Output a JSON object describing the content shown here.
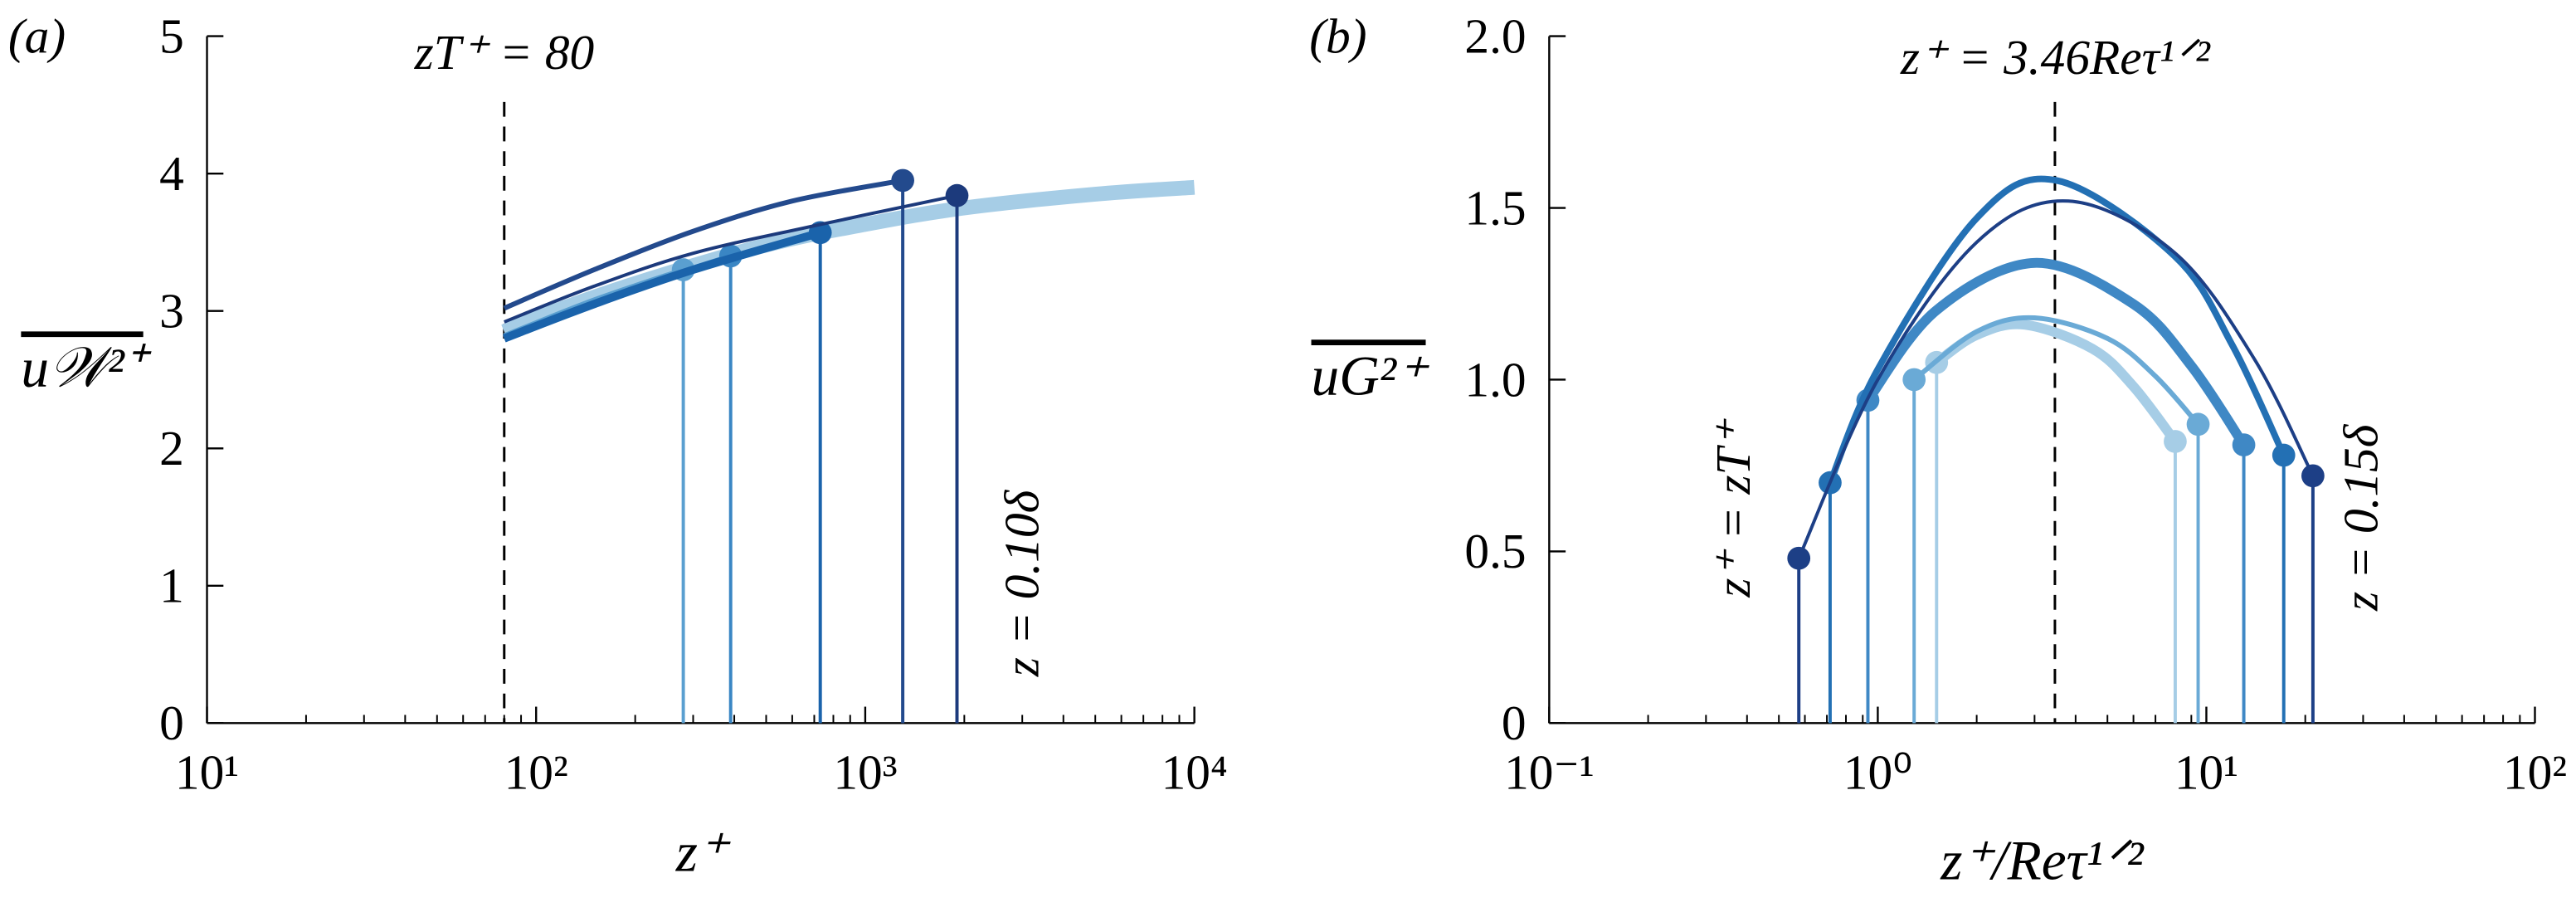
{
  "chart_data": [
    {
      "type": "line",
      "panel_label": "(a)",
      "xlabel": "z⁺",
      "ylabel": "u𝒲²⁺",
      "xscale": "log",
      "xlim": [
        10,
        10000
      ],
      "xticks": [
        {
          "value": 10,
          "label": "10¹"
        },
        {
          "value": 100,
          "label": "10²"
        },
        {
          "value": 1000,
          "label": "10³"
        },
        {
          "value": 10000,
          "label": "10⁴"
        }
      ],
      "ylim": [
        0,
        5
      ],
      "yticks": [
        0,
        1,
        2,
        3,
        4,
        5
      ],
      "vline": 80,
      "vline_label": "zT⁺ = 80",
      "annotations": [
        "z = 0.10δ"
      ],
      "markers": "last",
      "stems": true,
      "series": [
        {
          "color": "#a6cde6",
          "x": [
            80,
            100,
            200,
            500,
            1000,
            2000,
            5000,
            10000
          ],
          "values": [
            2.85,
            2.95,
            3.2,
            3.48,
            3.63,
            3.75,
            3.85,
            3.9
          ]
        },
        {
          "color": "#5a9fd0",
          "x": [
            80,
            150,
            280
          ],
          "values": [
            2.82,
            3.08,
            3.3
          ]
        },
        {
          "color": "#3a86c4",
          "x": [
            80,
            150,
            250,
            390
          ],
          "values": [
            2.8,
            3.05,
            3.25,
            3.4
          ]
        },
        {
          "color": "#1a63ab",
          "x": [
            80,
            150,
            300,
            730
          ],
          "values": [
            2.8,
            3.05,
            3.3,
            3.57
          ]
        },
        {
          "color": "#234a8d",
          "x": [
            80,
            150,
            300,
            600,
            1300
          ],
          "values": [
            3.02,
            3.3,
            3.58,
            3.8,
            3.95
          ]
        },
        {
          "color": "#1c3a7c",
          "x": [
            80,
            150,
            300,
            700,
            1900
          ],
          "values": [
            2.92,
            3.18,
            3.42,
            3.62,
            3.84
          ]
        }
      ]
    },
    {
      "type": "line",
      "panel_label": "(b)",
      "xlabel": "z⁺/Reτ¹ᐟ²",
      "ylabel": "uG²⁺",
      "xscale": "log",
      "xlim": [
        0.1,
        100
      ],
      "xticks": [
        {
          "value": 0.1,
          "label": "10⁻¹"
        },
        {
          "value": 1,
          "label": "10⁰"
        },
        {
          "value": 10,
          "label": "10¹"
        },
        {
          "value": 100,
          "label": "10²"
        }
      ],
      "ylim": [
        0,
        2
      ],
      "yticks": [
        0,
        0.5,
        {
          "value": 1,
          "label": "1.0"
        },
        1.5,
        {
          "value": 2,
          "label": "2.0"
        }
      ],
      "vline": 3.46,
      "vline_label": "z⁺ = 3.46Reτ¹ᐟ²",
      "annotations": [
        "z⁺ = zT⁺",
        "z = 0.15δ"
      ],
      "markers": "both",
      "stems": true,
      "series": [
        {
          "color": "#a6cde6",
          "x": [
            1.51,
            2,
            2.8,
            4.5,
            6,
            8.04
          ],
          "values": [
            1.05,
            1.13,
            1.16,
            1.09,
            0.98,
            0.82
          ]
        },
        {
          "color": "#6aaad6",
          "x": [
            1.29,
            2,
            3,
            5,
            7,
            9.44
          ],
          "values": [
            1.0,
            1.14,
            1.18,
            1.12,
            1.01,
            0.87
          ]
        },
        {
          "color": "#3f88c5",
          "x": [
            0.933,
            1.5,
            3,
            6,
            9,
            13
          ],
          "values": [
            0.94,
            1.2,
            1.34,
            1.22,
            1.04,
            0.81
          ]
        },
        {
          "color": "#2370b4",
          "x": [
            0.716,
            1,
            2,
            3.5,
            8,
            12,
            17.2
          ],
          "values": [
            0.7,
            1.03,
            1.47,
            1.58,
            1.36,
            1.1,
            0.78
          ]
        },
        {
          "color": "#1d3f86",
          "x": [
            0.575,
            1,
            2,
            3.8,
            8,
            14,
            21.1
          ],
          "values": [
            0.48,
            1.0,
            1.4,
            1.52,
            1.37,
            1.06,
            0.72
          ]
        }
      ]
    }
  ]
}
